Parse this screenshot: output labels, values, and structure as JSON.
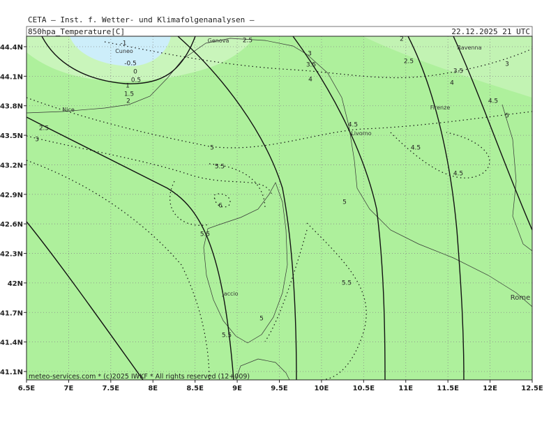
{
  "header": {
    "title": "CETA — Inst. f. Wetter- und Klimafolgenanalysen —",
    "field": "850hpa_Temperature[C]",
    "valid": "22.12.2025 21 UTC"
  },
  "map": {
    "lat_ticks": [
      {
        "value": 44.4,
        "label": "44.4N"
      },
      {
        "value": 44.1,
        "label": "44.1N"
      },
      {
        "value": 43.8,
        "label": "43.8N"
      },
      {
        "value": 43.5,
        "label": "43.5N"
      },
      {
        "value": 43.2,
        "label": "43.2N"
      },
      {
        "value": 42.9,
        "label": "42.9N"
      },
      {
        "value": 42.6,
        "label": "42.6N"
      },
      {
        "value": 42.3,
        "label": "42.3N"
      },
      {
        "value": 42,
        "label": "42N"
      },
      {
        "value": 41.7,
        "label": "41.7N"
      },
      {
        "value": 41.4,
        "label": "41.4N"
      },
      {
        "value": 41.1,
        "label": "41.1N"
      }
    ],
    "lon_ticks": [
      {
        "value": 6.5,
        "label": "6.5E"
      },
      {
        "value": 7,
        "label": "7E"
      },
      {
        "value": 7.5,
        "label": "7.5E"
      },
      {
        "value": 8,
        "label": "8E"
      },
      {
        "value": 8.5,
        "label": "8.5E"
      },
      {
        "value": 9,
        "label": "9E"
      },
      {
        "value": 9.5,
        "label": "9.5E"
      },
      {
        "value": 10,
        "label": "10E"
      },
      {
        "value": 10.5,
        "label": "10.5E"
      },
      {
        "value": 11,
        "label": "11E"
      },
      {
        "value": 11.5,
        "label": "11.5E"
      },
      {
        "value": 12,
        "label": "12E"
      },
      {
        "value": 12.5,
        "label": "12.5E"
      }
    ],
    "places": [
      "Genova",
      "Cuneo",
      "Nice",
      "Livorno",
      "Firenze",
      "Ravenna",
      "Rome",
      "jaccio"
    ],
    "contour_labels": [
      -1,
      -0.5,
      0,
      0.5,
      1,
      1.5,
      2,
      2.5,
      2.5,
      3,
      3,
      3.5,
      4,
      2,
      2.5,
      3.5,
      3,
      4,
      4.5,
      5,
      4.5,
      4.5,
      4.5,
      5,
      5.5,
      6,
      5.5,
      5,
      5.5,
      5,
      5.5
    ],
    "footer": "meteo-services.com * (c)2025 IWKF * All rights reserved (12+009)"
  }
}
